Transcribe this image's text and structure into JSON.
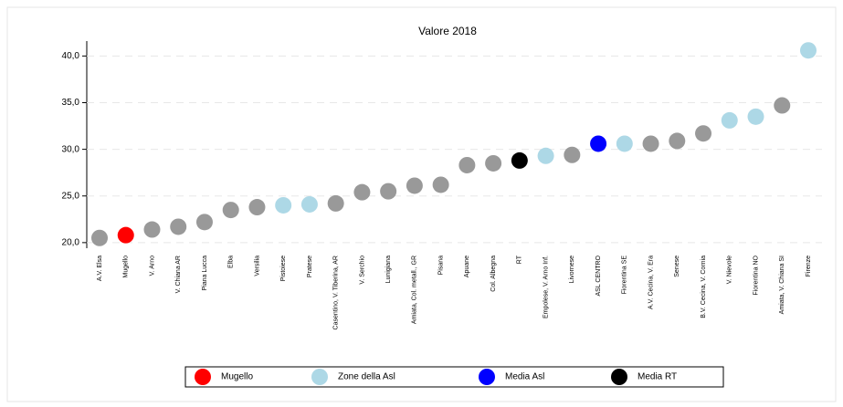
{
  "chart_data": {
    "type": "dot",
    "title": "Valore 2018",
    "categories": [
      "A.V. Elsa",
      "Mugello",
      "V. Arno",
      "V. Chiana AR",
      "Piana Lucca",
      "Elba",
      "Versilia",
      "Pistoiese",
      "Pratese",
      "Casentino, V. Tiberina, AR",
      "V. Serchio",
      "Lunigiana",
      "Amiata, Col. metall., GR",
      "Pisana",
      "Apuane",
      "Col. Albegna",
      "RT",
      "Empolese, V. Arno Inf.",
      "Livornese",
      "ASL CENTRO",
      "Fiorentina SE",
      "A.V. Cecina, V. Era",
      "Senese",
      "B.V. Cecina, V. Cornia",
      "V. Nievole",
      "Fiorentina NO",
      "Amiata, V. Chiana SI",
      "Firenze"
    ],
    "values": [
      20.5,
      20.8,
      21.4,
      21.7,
      22.2,
      23.5,
      23.8,
      24.0,
      24.1,
      24.2,
      25.4,
      25.5,
      26.1,
      26.2,
      28.3,
      28.5,
      28.8,
      29.3,
      29.4,
      30.6,
      30.6,
      30.6,
      30.9,
      31.7,
      33.1,
      33.5,
      34.7,
      40.6
    ],
    "colors": [
      "#999999",
      "#ff0000",
      "#999999",
      "#999999",
      "#999999",
      "#999999",
      "#999999",
      "#add8e6",
      "#add8e6",
      "#999999",
      "#999999",
      "#999999",
      "#999999",
      "#999999",
      "#999999",
      "#999999",
      "#000000",
      "#add8e6",
      "#999999",
      "#0000ff",
      "#add8e6",
      "#999999",
      "#999999",
      "#999999",
      "#add8e6",
      "#add8e6",
      "#999999",
      "#add8e6"
    ],
    "ylim": [
      19.4,
      41.6
    ],
    "yticks": [
      {
        "value": 20,
        "label": "20,0"
      },
      {
        "value": 25,
        "label": "25,0"
      },
      {
        "value": 30,
        "label": "30,0"
      },
      {
        "value": 35,
        "label": "35,0"
      },
      {
        "value": 40,
        "label": "40,0"
      }
    ],
    "grid": true,
    "legend_position": "bottom",
    "legend": [
      {
        "name": "Mugello",
        "color": "#ff0000"
      },
      {
        "name": "Zone della Asl",
        "color": "#add8e6"
      },
      {
        "name": "Media Asl",
        "color": "#0000ff"
      },
      {
        "name": "Media RT",
        "color": "#000000"
      }
    ]
  }
}
